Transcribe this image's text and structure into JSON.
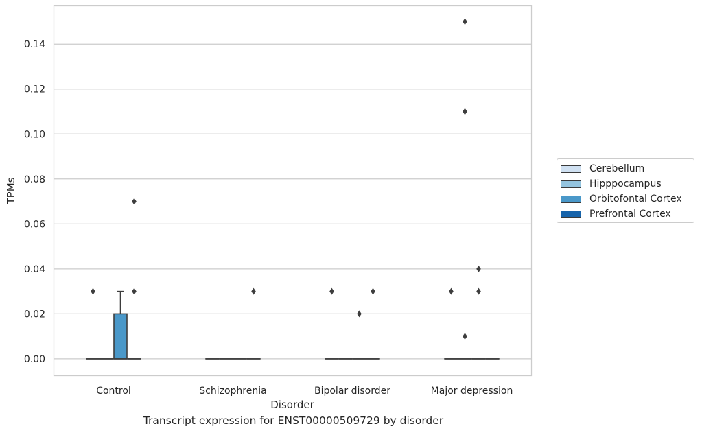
{
  "chart_data": {
    "type": "box",
    "title": "",
    "caption": "Transcript expression for ENST00000509729 by disorder",
    "xlabel": "Disorder",
    "ylabel": "TPMs",
    "categories": [
      "Control",
      "Schizophrenia",
      "Bipolar disorder",
      "Major depression"
    ],
    "ylim": [
      -0.0075,
      0.157
    ],
    "yticks": [
      "0.00",
      "0.02",
      "0.04",
      "0.06",
      "0.08",
      "0.10",
      "0.12",
      "0.14"
    ],
    "grid": true,
    "legend_position": "right",
    "series": [
      {
        "name": "Cerebellum",
        "color": "#d0e1f2",
        "boxes": [
          {
            "q1": 0,
            "median": 0,
            "q3": 0,
            "whisker_low": 0,
            "whisker_high": 0,
            "outliers": [
              0.03
            ]
          },
          {
            "q1": 0,
            "median": 0,
            "q3": 0,
            "whisker_low": 0,
            "whisker_high": 0,
            "outliers": []
          },
          {
            "q1": 0,
            "median": 0,
            "q3": 0,
            "whisker_low": 0,
            "whisker_high": 0,
            "outliers": [
              0.03
            ]
          },
          {
            "q1": 0,
            "median": 0,
            "q3": 0,
            "whisker_low": 0,
            "whisker_high": 0,
            "outliers": [
              0.03
            ]
          }
        ]
      },
      {
        "name": "Hipppocampus",
        "color": "#94c4df",
        "boxes": [
          {
            "q1": 0,
            "median": 0,
            "q3": 0,
            "whisker_low": 0,
            "whisker_high": 0,
            "outliers": []
          },
          {
            "q1": 0,
            "median": 0,
            "q3": 0,
            "whisker_low": 0,
            "whisker_high": 0,
            "outliers": []
          },
          {
            "q1": 0,
            "median": 0,
            "q3": 0,
            "whisker_low": 0,
            "whisker_high": 0,
            "outliers": []
          },
          {
            "q1": 0,
            "median": 0,
            "q3": 0,
            "whisker_low": 0,
            "whisker_high": 0,
            "outliers": [
              0.15,
              0.11,
              0.01
            ]
          }
        ]
      },
      {
        "name": "Orbitofontal Cortex",
        "color": "#4a98c9",
        "boxes": [
          {
            "q1": 0,
            "median": 0,
            "q3": 0.02,
            "whisker_low": 0,
            "whisker_high": 0.03,
            "outliers": []
          },
          {
            "q1": 0,
            "median": 0,
            "q3": 0,
            "whisker_low": 0,
            "whisker_high": 0,
            "outliers": []
          },
          {
            "q1": 0,
            "median": 0,
            "q3": 0,
            "whisker_low": 0,
            "whisker_high": 0,
            "outliers": [
              0.02
            ]
          },
          {
            "q1": 0,
            "median": 0,
            "q3": 0,
            "whisker_low": 0,
            "whisker_high": 0,
            "outliers": [
              0.04,
              0.03
            ]
          }
        ]
      },
      {
        "name": "Prefrontal Cortex",
        "color": "#1764ab",
        "boxes": [
          {
            "q1": 0,
            "median": 0,
            "q3": 0,
            "whisker_low": 0,
            "whisker_high": 0,
            "outliers": [
              0.07,
              0.03
            ]
          },
          {
            "q1": 0,
            "median": 0,
            "q3": 0,
            "whisker_low": 0,
            "whisker_high": 0,
            "outliers": [
              0.03
            ]
          },
          {
            "q1": 0,
            "median": 0,
            "q3": 0,
            "whisker_low": 0,
            "whisker_high": 0,
            "outliers": [
              0.03
            ]
          },
          {
            "q1": 0,
            "median": 0,
            "q3": 0,
            "whisker_low": 0,
            "whisker_high": 0,
            "outliers": []
          }
        ]
      }
    ]
  }
}
